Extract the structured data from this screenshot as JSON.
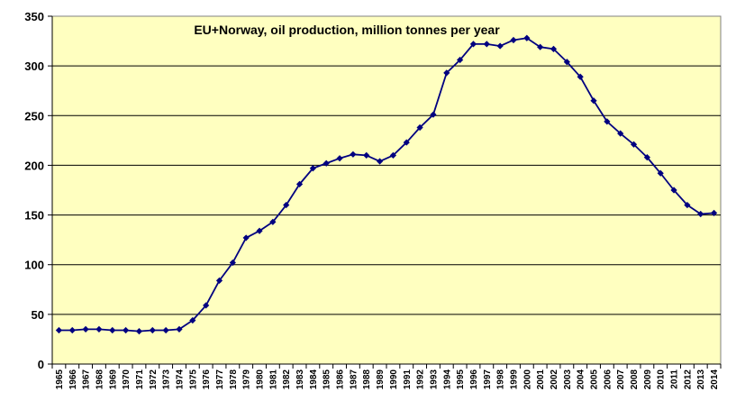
{
  "chart_data": {
    "type": "line",
    "title": "EU+Norway, oil production, million tonnes per year",
    "xlabel": "",
    "ylabel": "",
    "ylim": [
      0,
      350
    ],
    "yticks": [
      0,
      50,
      100,
      150,
      200,
      250,
      300,
      350
    ],
    "grid": true,
    "legend": "none",
    "x": [
      1965,
      1966,
      1967,
      1968,
      1969,
      1970,
      1971,
      1972,
      1973,
      1974,
      1975,
      1976,
      1977,
      1978,
      1979,
      1980,
      1981,
      1982,
      1983,
      1984,
      1985,
      1986,
      1987,
      1988,
      1989,
      1990,
      1991,
      1992,
      1993,
      1994,
      1995,
      1996,
      1997,
      1998,
      1999,
      2000,
      2001,
      2002,
      2003,
      2004,
      2005,
      2006,
      2007,
      2008,
      2009,
      2010,
      2011,
      2012,
      2013,
      2014
    ],
    "series": [
      {
        "values": [
          34,
          34,
          35,
          35,
          34,
          34,
          33,
          34,
          34,
          35,
          44,
          59,
          84,
          102,
          127,
          134,
          143,
          160,
          181,
          197,
          202,
          207,
          211,
          210,
          204,
          210,
          223,
          238,
          251,
          293,
          306,
          322,
          322,
          320,
          326,
          328,
          319,
          317,
          304,
          289,
          265,
          244,
          232,
          221,
          208,
          192,
          175,
          160,
          151,
          152
        ],
        "color": "#000080"
      }
    ],
    "colors": {
      "plot_background": "#ffffc0",
      "gridline": "#000000",
      "line": "#000080"
    }
  }
}
